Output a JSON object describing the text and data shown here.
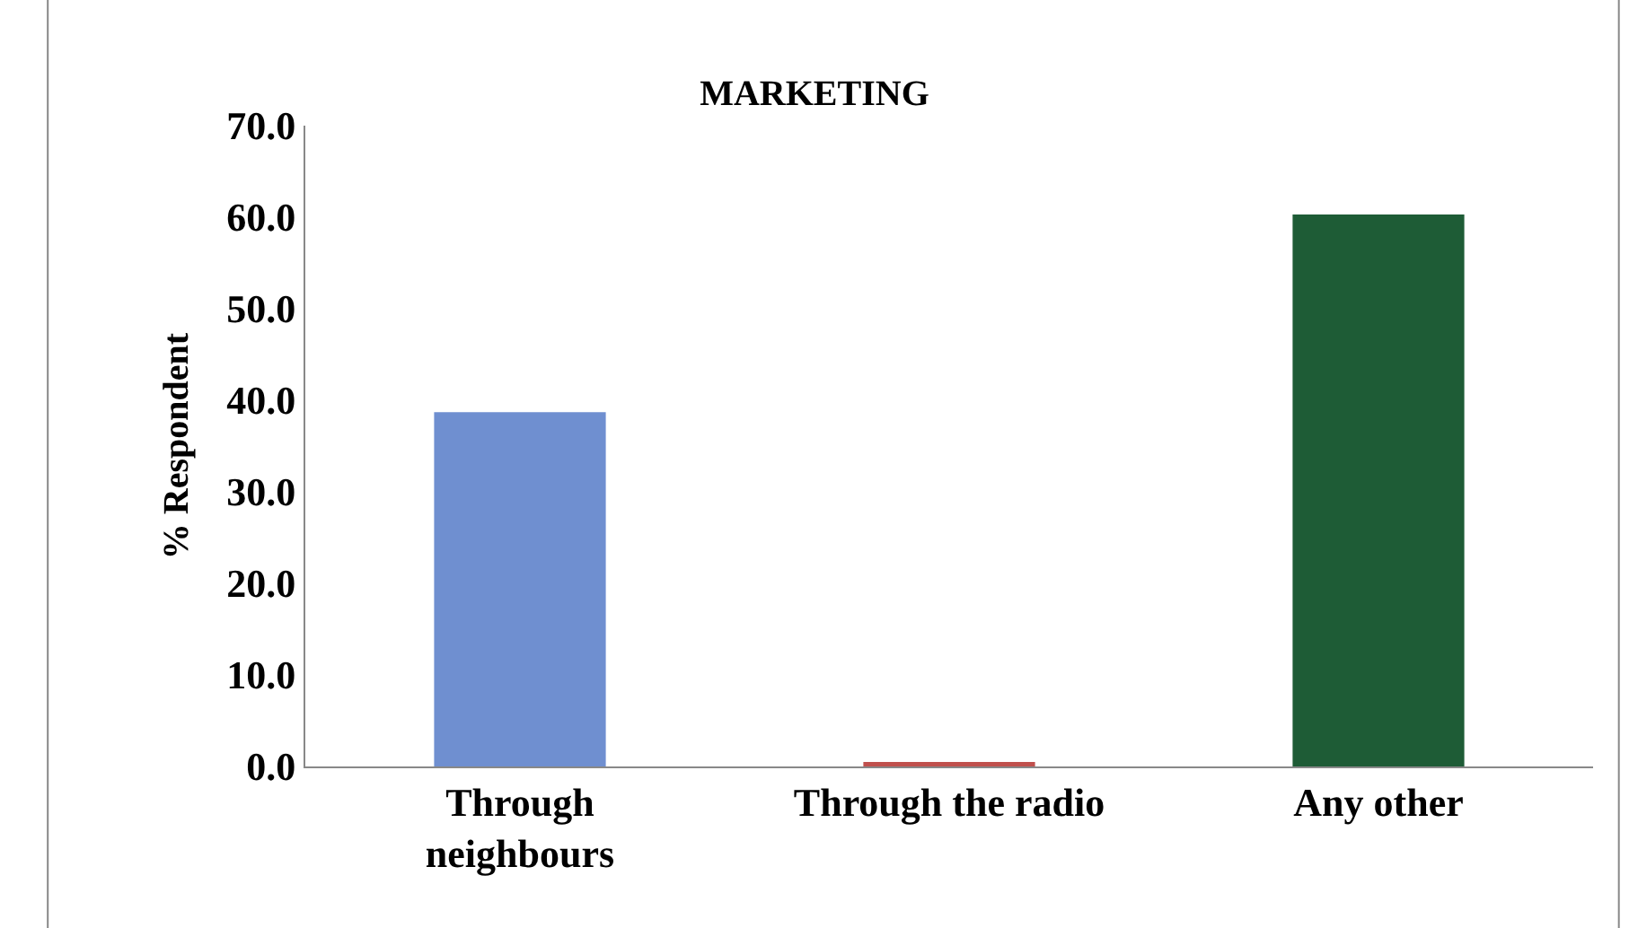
{
  "chart_data": {
    "type": "bar",
    "title": "MARKETING",
    "ylabel": "% Respondent",
    "categories": [
      "Through\nneighbours",
      "Through the radio",
      "Any other"
    ],
    "values": [
      38.7,
      0.5,
      60.3
    ],
    "colors": [
      "#6f8fd0",
      "#c0504d",
      "#1e5c36"
    ],
    "ylim": [
      0,
      70
    ],
    "yticks": [
      {
        "value": 0,
        "label": "0.0"
      },
      {
        "value": 10,
        "label": "10.0"
      },
      {
        "value": 20,
        "label": "20.0"
      },
      {
        "value": 30,
        "label": "30.0"
      },
      {
        "value": 40,
        "label": "40.0"
      },
      {
        "value": 50,
        "label": "50.0"
      },
      {
        "value": 60,
        "label": "60.0"
      },
      {
        "value": 70,
        "label": "70.0"
      }
    ],
    "grid": false,
    "legend": false
  }
}
